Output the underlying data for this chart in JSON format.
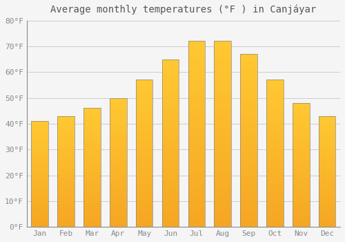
{
  "title": "Average monthly temperatures (°F ) in Canjáyar",
  "months": [
    "Jan",
    "Feb",
    "Mar",
    "Apr",
    "May",
    "Jun",
    "Jul",
    "Aug",
    "Sep",
    "Oct",
    "Nov",
    "Dec"
  ],
  "values": [
    41,
    43,
    46,
    50,
    57,
    65,
    72,
    72,
    67,
    57,
    48,
    43
  ],
  "ylim": [
    0,
    80
  ],
  "yticks": [
    0,
    10,
    20,
    30,
    40,
    50,
    60,
    70,
    80
  ],
  "ytick_labels": [
    "0°F",
    "10°F",
    "20°F",
    "30°F",
    "40°F",
    "50°F",
    "60°F",
    "70°F",
    "80°F"
  ],
  "bar_color_bottom": "#F5A623",
  "bar_color_top": "#FFC832",
  "bar_edge_color": "#888888",
  "background_color": "#F5F5F5",
  "plot_bg_color": "#F5F5F5",
  "grid_color": "#CCCCCC",
  "title_fontsize": 10,
  "tick_fontsize": 8,
  "bar_width": 0.65,
  "n_gradient_steps": 50
}
